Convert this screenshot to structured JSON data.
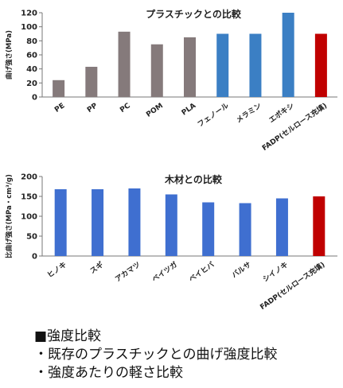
{
  "chart_data": [
    {
      "type": "bar",
      "title": "プラスチックとの比較",
      "ylabel": "曲げ強さ(MPa)",
      "ylim": [
        0,
        120
      ],
      "yticks": [
        0,
        20,
        40,
        60,
        80,
        100,
        120
      ],
      "categories": [
        "PE",
        "PP",
        "PC",
        "POM",
        "PLA",
        "フェノール",
        "メラミン",
        "エポキシ",
        "FADP(セルロース充填)"
      ],
      "values": [
        24,
        43,
        93,
        75,
        85,
        90,
        90,
        120,
        90
      ],
      "bar_colors": [
        "#857a7b",
        "#857a7b",
        "#857a7b",
        "#857a7b",
        "#857a7b",
        "#3b7fc4",
        "#3b7fc4",
        "#3b7fc4",
        "#c00000"
      ],
      "grid": false
    },
    {
      "type": "bar",
      "title": "木材との比較",
      "ylabel": "比曲げ強さ(MPa・cm³/g)",
      "ylim": [
        0,
        200
      ],
      "yticks": [
        0,
        50,
        100,
        150,
        200
      ],
      "categories": [
        "ヒノキ",
        "スギ",
        "アカマツ",
        "ベイツガ",
        "ベイヒバ",
        "バルサ",
        "シイノキ",
        "FADP(セルロース充填)"
      ],
      "values": [
        168,
        168,
        170,
        155,
        135,
        133,
        145,
        150
      ],
      "bar_colors": [
        "#3f6fd0",
        "#3f6fd0",
        "#3f6fd0",
        "#3f6fd0",
        "#3f6fd0",
        "#3f6fd0",
        "#3f6fd0",
        "#c00000"
      ],
      "grid": false
    }
  ],
  "caption": {
    "heading": "■強度比較",
    "line1": "・既存のプラスチックとの曲げ強度比較",
    "line2": "・強度あたりの軽さ比較"
  }
}
